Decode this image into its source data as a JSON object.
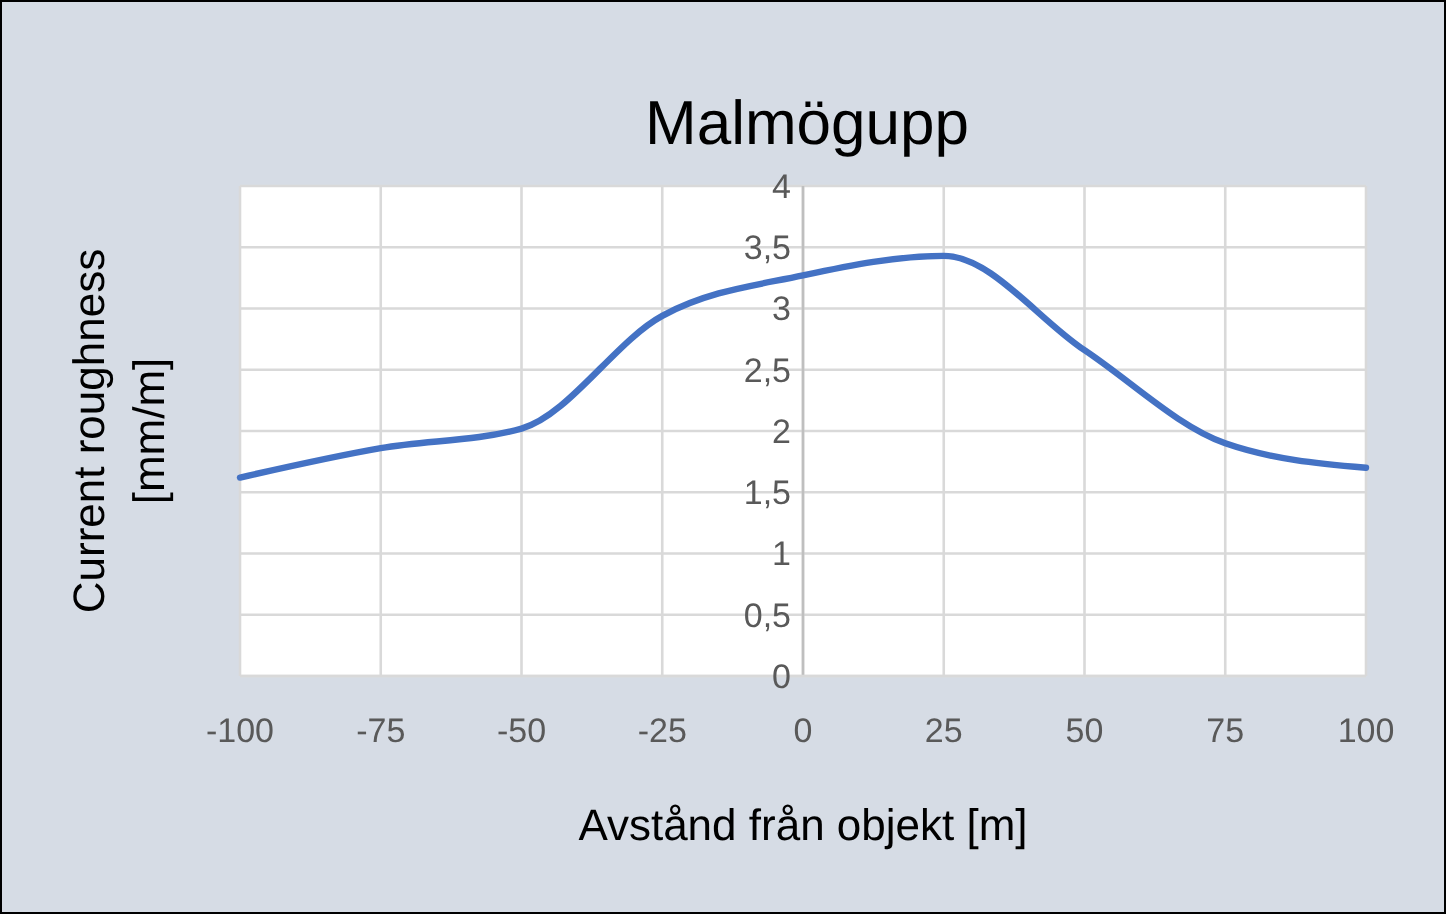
{
  "chart_data": {
    "type": "line",
    "title": "Malmögupp",
    "xlabel": "Avstånd från objekt [m]",
    "ylabel": "Current roughness [mm/m]",
    "x": [
      -100,
      -75,
      -50,
      -25,
      0,
      25,
      50,
      75,
      100
    ],
    "series": [
      {
        "color": "#4472c4",
        "values": [
          1.62,
          1.86,
          2.02,
          2.94,
          3.27,
          3.43,
          2.66,
          1.9,
          1.7
        ]
      }
    ],
    "xlim": [
      -100,
      100
    ],
    "xticks": [
      -100,
      -75,
      -50,
      -25,
      0,
      25,
      50,
      75,
      100
    ],
    "ylim": [
      0,
      4
    ],
    "yticks": [
      0,
      {
        "value": 0.5,
        "label": "0,5"
      },
      1,
      {
        "value": 1.5,
        "label": "1,5"
      },
      2,
      {
        "value": 2.5,
        "label": "2,5"
      },
      3,
      {
        "value": 3.5,
        "label": "3,5"
      },
      4
    ],
    "grid": true,
    "marker": "none",
    "line_style": "solid"
  }
}
